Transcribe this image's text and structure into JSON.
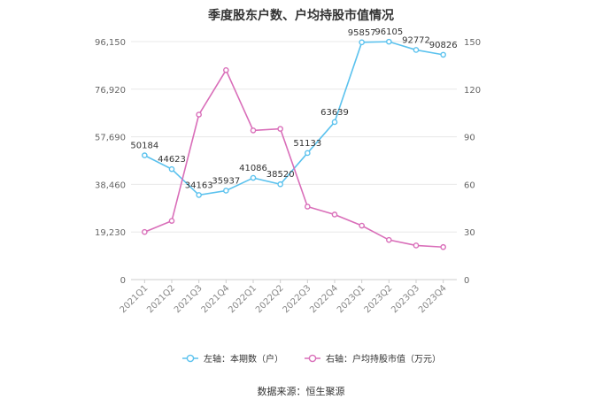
{
  "chart_data": {
    "type": "line",
    "title": "季度股东户数、户均持股市值情况",
    "categories": [
      "2021Q1",
      "2021Q2",
      "2021Q3",
      "2021Q4",
      "2022Q1",
      "2022Q2",
      "2022Q3",
      "2022Q4",
      "2023Q1",
      "2023Q2",
      "2023Q3",
      "2023Q4"
    ],
    "series": [
      {
        "name": "左轴：本期数（户）",
        "axis": "left",
        "color": "#5bc2ee",
        "values": [
          50184,
          44623,
          34163,
          35937,
          41086,
          38520,
          51133,
          63639,
          95857,
          96105,
          92772,
          90826
        ],
        "labels": [
          "50184",
          "44623",
          "34163",
          "35937",
          "41086",
          "38520",
          "51133",
          "63639",
          "95857",
          "96105",
          "92772",
          "90826"
        ]
      },
      {
        "name": "右轴：户均持股市值（万元）",
        "axis": "right",
        "color": "#d96eb9",
        "values": [
          30,
          37,
          104,
          132,
          94,
          95,
          46,
          41,
          34,
          25,
          21.5,
          20.5
        ]
      }
    ],
    "left_axis": {
      "min": 0,
      "max": 96150,
      "ticks": [
        0,
        19230,
        38460,
        57690,
        76920,
        96150
      ],
      "tick_labels": [
        "0",
        "19,230",
        "38,460",
        "57,690",
        "76,920",
        "96,150"
      ]
    },
    "right_axis": {
      "min": 0,
      "max": 150,
      "ticks": [
        0,
        30,
        60,
        90,
        120,
        150
      ],
      "tick_labels": [
        "0",
        "30",
        "60",
        "90",
        "120",
        "150"
      ]
    },
    "grid": true,
    "legend_position": "bottom",
    "source": "数据来源：恒生聚源"
  }
}
